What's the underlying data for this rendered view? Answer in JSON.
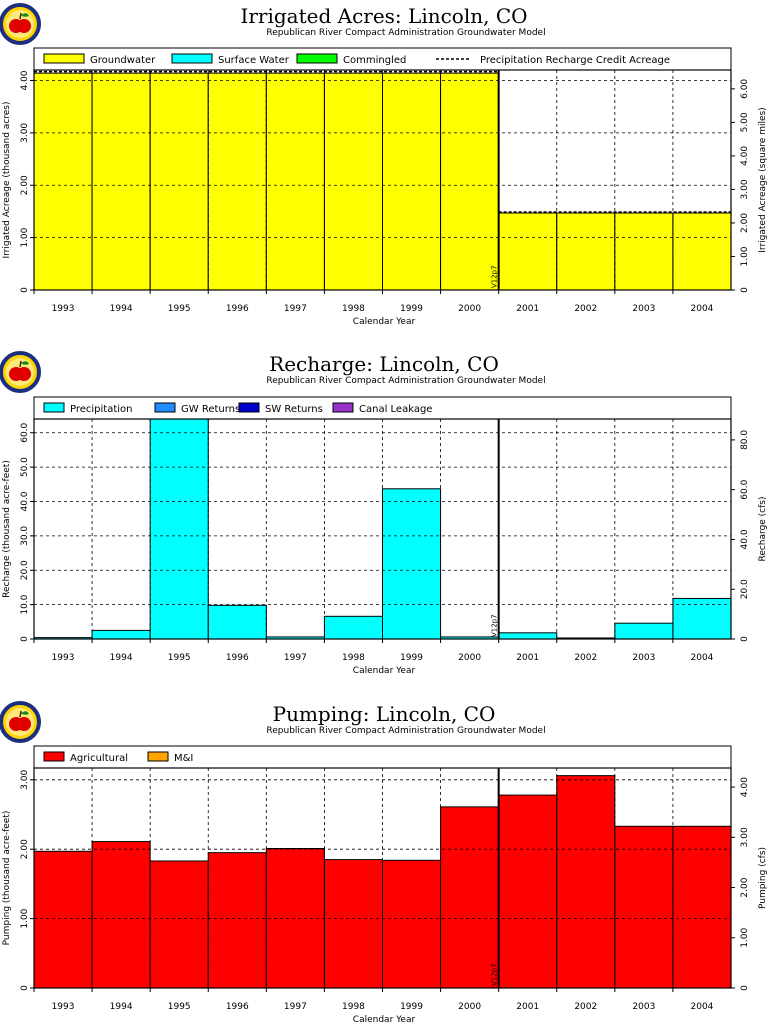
{
  "chart_data": [
    {
      "type": "area",
      "title": "Irrigated Acres: Lincoln, CO",
      "subtitle": "Republican River Compact Administration Groundwater Model",
      "xlabel": "Calendar Year",
      "ylabel": "Irrigated Acreage (thousand acres)",
      "y2label": "Irrigated Acreage (square miles)",
      "categories": [
        "1993",
        "1994",
        "1995",
        "1996",
        "1997",
        "1998",
        "1999",
        "2000",
        "2001",
        "2002",
        "2003",
        "2004"
      ],
      "ylim": [
        0,
        4.2
      ],
      "yticks": [
        "0",
        "1.00",
        "2.00",
        "3.00",
        "4.00"
      ],
      "yticks_values": [
        0,
        1,
        2,
        3,
        4
      ],
      "y2lim": [
        0,
        6.5625
      ],
      "y2ticks": [
        "0",
        "1.00",
        "2.00",
        "3.00",
        "4.00",
        "5.00",
        "6.00"
      ],
      "y2ticks_values": [
        0,
        1,
        2,
        3,
        4,
        5,
        6
      ],
      "grid": true,
      "legend_placement": "top",
      "marker_label": "V12p7",
      "marker_after_index": 7,
      "series": [
        {
          "name": "Groundwater",
          "color": "#ffff00",
          "values": [
            4.14,
            4.14,
            4.14,
            4.14,
            4.14,
            4.14,
            4.14,
            4.14,
            1.47,
            1.47,
            1.47,
            1.47
          ]
        },
        {
          "name": "Surface Water",
          "color": "#00ffff",
          "values": [
            0,
            0,
            0,
            0,
            0,
            0,
            0,
            0,
            0,
            0,
            0,
            0
          ]
        },
        {
          "name": "Commingled",
          "color": "#00ff00",
          "values": [
            0,
            0,
            0,
            0,
            0,
            0,
            0,
            0,
            0,
            0,
            0,
            0
          ]
        }
      ],
      "line_series": {
        "name": "Precipitation Recharge Credit Acreage",
        "values": [
          4.17,
          4.17,
          4.17,
          4.17,
          4.17,
          4.17,
          4.17,
          4.17,
          1.49,
          1.49,
          1.49,
          1.49
        ]
      }
    },
    {
      "type": "area",
      "title": "Recharge: Lincoln, CO",
      "subtitle": "Republican River Compact Administration Groundwater Model",
      "xlabel": "Calendar Year",
      "ylabel": "Recharge (thousand acre-feet)",
      "y2label": "Recharge (cfs)",
      "categories": [
        "1993",
        "1994",
        "1995",
        "1996",
        "1997",
        "1998",
        "1999",
        "2000",
        "2001",
        "2002",
        "2003",
        "2004"
      ],
      "ylim": [
        0,
        64
      ],
      "yticks": [
        "0",
        "10.0",
        "20.0",
        "30.0",
        "40.0",
        "50.0",
        "60.0"
      ],
      "yticks_values": [
        0,
        10,
        20,
        30,
        40,
        50,
        60
      ],
      "y2lim": [
        0,
        88.4
      ],
      "y2ticks": [
        "0",
        "20.0",
        "40.0",
        "60.0",
        "80.0"
      ],
      "y2ticks_values": [
        0,
        20,
        40,
        60,
        80
      ],
      "grid": true,
      "legend_placement": "top",
      "marker_label": "V12p7",
      "marker_after_index": 7,
      "series": [
        {
          "name": "Precipitation",
          "color": "#00ffff",
          "values": [
            0.4,
            2.5,
            64.0,
            9.8,
            0.6,
            6.6,
            43.7,
            0.6,
            1.8,
            0.3,
            4.6,
            11.8
          ]
        },
        {
          "name": "GW Returns",
          "color": "#1e90ff",
          "values": [
            0,
            0,
            0,
            0,
            0,
            0,
            0,
            0,
            0,
            0,
            0,
            0
          ]
        },
        {
          "name": "SW Returns",
          "color": "#0000cd",
          "values": [
            0,
            0,
            0,
            0,
            0,
            0,
            0,
            0,
            0,
            0,
            0,
            0
          ]
        },
        {
          "name": "Canal Leakage",
          "color": "#9932cc",
          "values": [
            0,
            0,
            0,
            0,
            0,
            0,
            0,
            0,
            0,
            0,
            0,
            0
          ]
        }
      ]
    },
    {
      "type": "area",
      "title": "Pumping: Lincoln, CO",
      "subtitle": "Republican River Compact Administration Groundwater Model",
      "xlabel": "Calendar Year",
      "ylabel": "Pumping (thousand acre-feet)",
      "y2label": "Pumping (cfs)",
      "categories": [
        "1993",
        "1994",
        "1995",
        "1996",
        "1997",
        "1998",
        "1999",
        "2000",
        "2001",
        "2002",
        "2003",
        "2004"
      ],
      "ylim": [
        0,
        3.17
      ],
      "yticks": [
        "0",
        "1.00",
        "2.00",
        "3.00"
      ],
      "yticks_values": [
        0,
        1,
        2,
        3
      ],
      "y2lim": [
        0,
        4.38
      ],
      "y2ticks": [
        "0",
        "1.00",
        "2.00",
        "3.00",
        "4.00"
      ],
      "y2ticks_values": [
        0,
        1,
        2,
        3,
        4
      ],
      "grid": true,
      "legend_placement": "top",
      "marker_label": "V12p7",
      "marker_after_index": 7,
      "series": [
        {
          "name": "Agricultural",
          "color": "#ff0000",
          "values": [
            1.97,
            2.11,
            1.83,
            1.95,
            2.01,
            1.85,
            1.84,
            2.61,
            2.78,
            3.06,
            2.33,
            2.33
          ]
        },
        {
          "name": "M&I",
          "color": "#ffa500",
          "values": [
            0,
            0,
            0,
            0,
            0,
            0,
            0,
            0,
            0,
            0,
            0,
            0
          ]
        }
      ]
    }
  ]
}
